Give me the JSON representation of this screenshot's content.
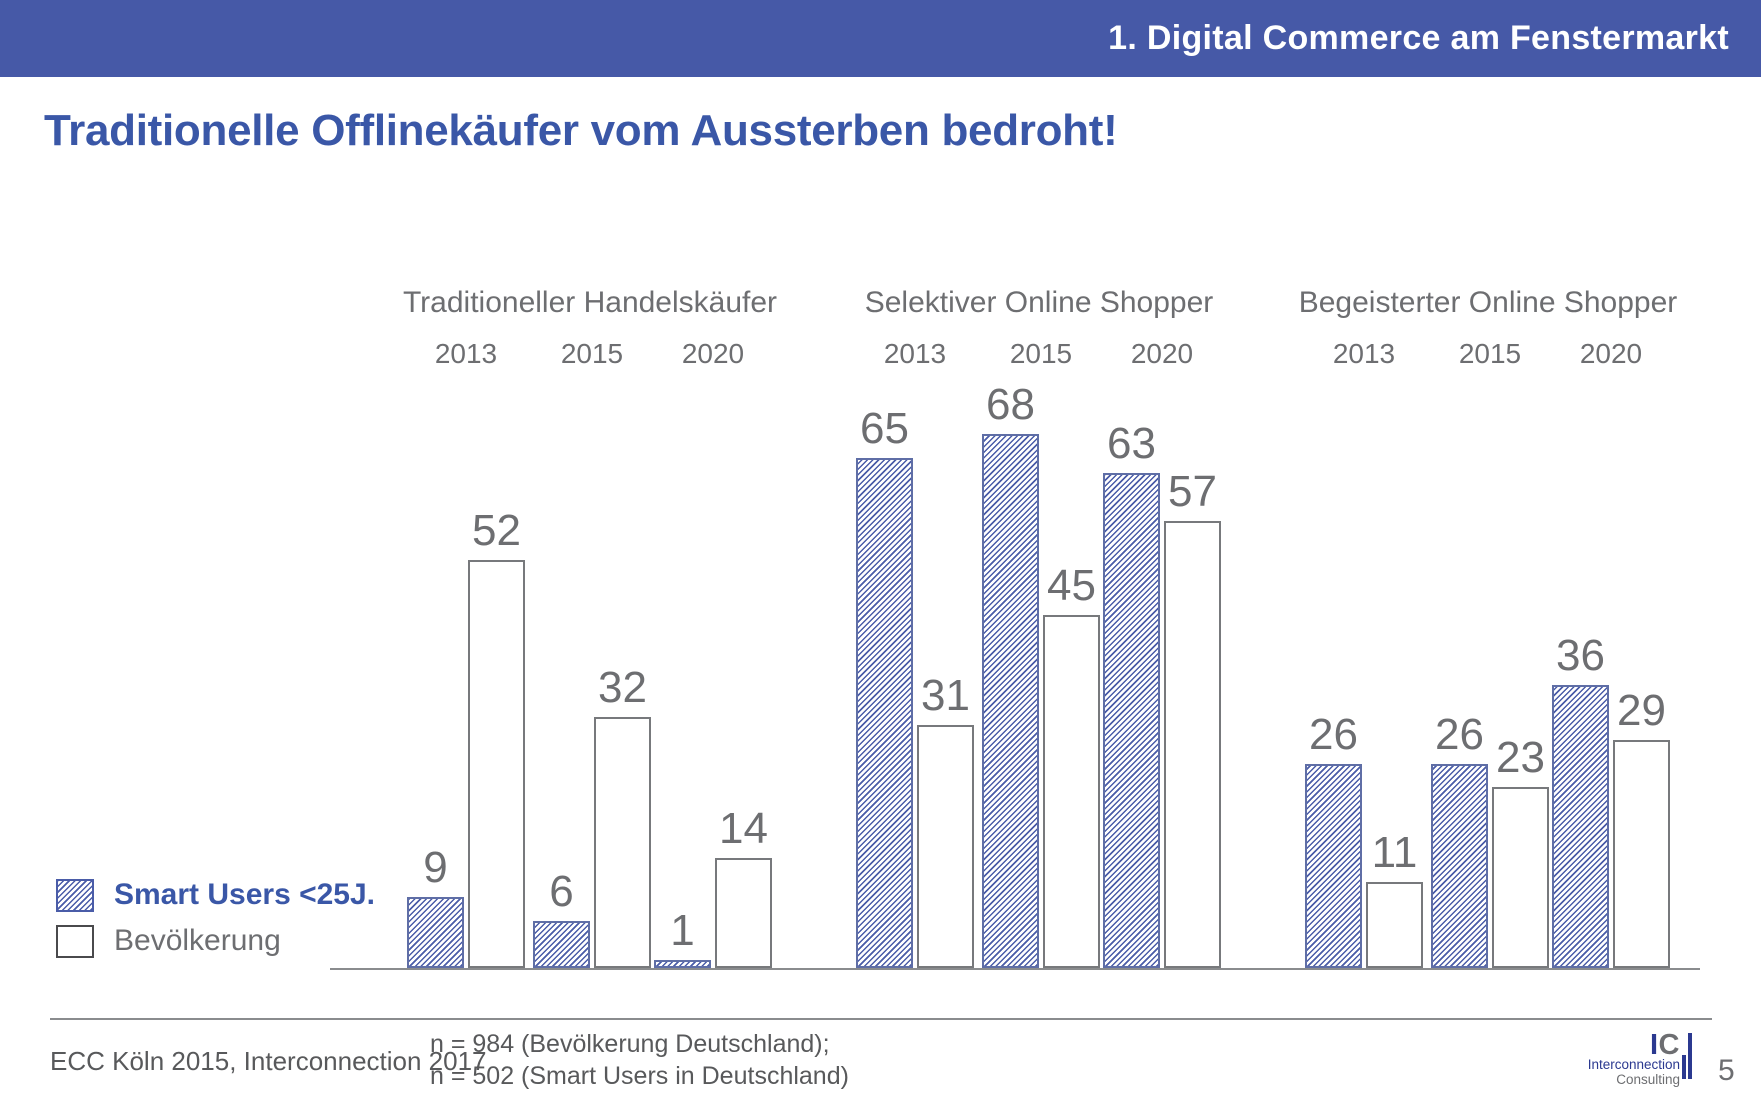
{
  "header": {
    "breadcrumb": "1. Digital Commerce am Fenstermarkt"
  },
  "title": "Traditionelle Offlinekäufer vom Aussterben bedroht!",
  "legend": {
    "smart_users_label": "Smart Users <25J.",
    "bevoelkerung_label": "Bevölkerung"
  },
  "colors": {
    "banner_blue": "#4659a7",
    "title_blue": "#3a57a7",
    "hatch_blue": "#4a5ca8",
    "text_gray": "#6d6e71",
    "bar_outline_gray": "#77797c",
    "footer_gray": "#58595b",
    "logo_blue": "#2b3990"
  },
  "chart_data": {
    "type": "bar",
    "title": "Traditionelle Offlinekäufer vom Aussterben bedroht!",
    "years": [
      "2013",
      "2015",
      "2020"
    ],
    "series_names": [
      "Smart Users <25J.",
      "Bevölkerung"
    ],
    "groups": [
      {
        "label": "Traditioneller Handelskäufer",
        "smart_users": [
          9,
          6,
          1
        ],
        "bevoelkerung": [
          52,
          32,
          14
        ]
      },
      {
        "label": "Selektiver Online Shopper",
        "smart_users": [
          65,
          68,
          63
        ],
        "bevoelkerung": [
          31,
          45,
          57
        ]
      },
      {
        "label": "Begeisterter Online Shopper",
        "smart_users": [
          26,
          26,
          36
        ],
        "bevoelkerung": [
          11,
          23,
          29
        ]
      }
    ],
    "ylim": [
      0,
      70
    ],
    "gridlines": false,
    "value_labels": true,
    "axis": "baseline-only",
    "legend_position": "bottom-left"
  },
  "footer": {
    "source": "ECC Köln 2015, Interconnection 2017",
    "sample_line1": "n = 984 (Bevölkerung Deutschland);",
    "sample_line2": "n = 502 (Smart Users in Deutschland)",
    "page_number": "5",
    "logo": {
      "ic_i": "I",
      "ic_c": "C",
      "line1": "Interconnection",
      "line2": "Consulting"
    }
  }
}
